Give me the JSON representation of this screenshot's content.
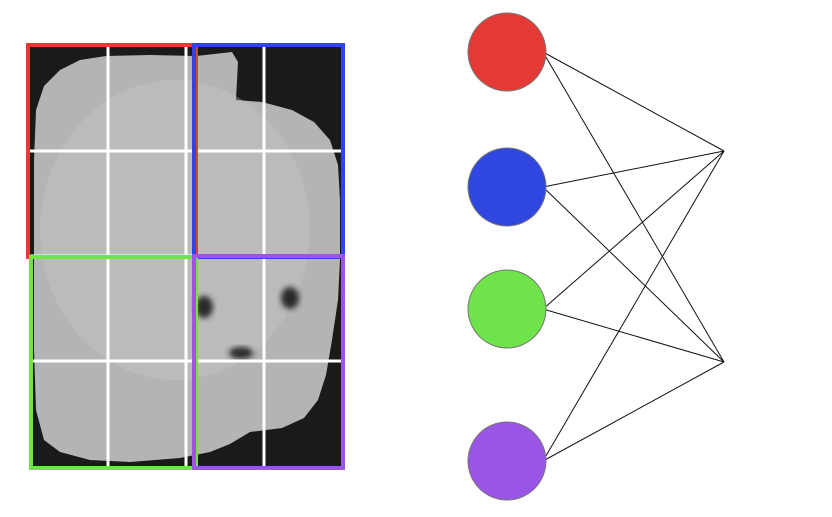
{
  "image_panel": {
    "grid": {
      "rows": 4,
      "cols": 4
    },
    "quadrants": [
      {
        "id": "top-left",
        "color": "#e53935"
      },
      {
        "id": "top-right",
        "color": "#2f46e0"
      },
      {
        "id": "bottom-left",
        "color": "#6fe34a"
      },
      {
        "id": "bottom-right",
        "color": "#9a55e6"
      }
    ],
    "colors": {
      "background": "#1a1a1a",
      "object": "#b4b4b4",
      "object_edge": "#c8c8c8",
      "grid_line": "#ffffff",
      "spot": "#2a2a2a"
    }
  },
  "network": {
    "input_nodes": [
      {
        "id": "red",
        "color": "#e53935"
      },
      {
        "id": "blue",
        "color": "#2f46e0"
      },
      {
        "id": "green",
        "color": "#6fe34a"
      },
      {
        "id": "purple",
        "color": "#9a55e6"
      }
    ],
    "output_nodes": [
      {
        "id": "out-1"
      },
      {
        "id": "out-2"
      }
    ],
    "edges": "fully-connected",
    "colors": {
      "edge": "#111111",
      "node_outline": "#777777"
    }
  }
}
